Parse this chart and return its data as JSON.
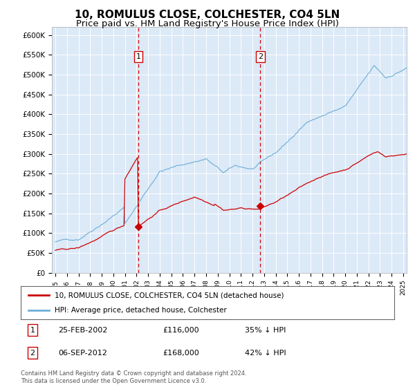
{
  "title": "10, ROMULUS CLOSE, COLCHESTER, CO4 5LN",
  "subtitle": "Price paid vs. HM Land Registry's House Price Index (HPI)",
  "title_fontsize": 11,
  "subtitle_fontsize": 9.5,
  "plot_bg_color": "#dce9f7",
  "hpi_color": "#6baed6",
  "price_color": "#cc0000",
  "vline_color": "#cc0000",
  "marker1_x": 2002.15,
  "marker2_x": 2012.68,
  "marker1_price": 116000,
  "marker2_price": 168000,
  "legend_line1": "10, ROMULUS CLOSE, COLCHESTER, CO4 5LN (detached house)",
  "legend_line2": "HPI: Average price, detached house, Colchester",
  "table_row1": [
    "1",
    "25-FEB-2002",
    "£116,000",
    "35% ↓ HPI"
  ],
  "table_row2": [
    "2",
    "06-SEP-2012",
    "£168,000",
    "42% ↓ HPI"
  ],
  "footer": "Contains HM Land Registry data © Crown copyright and database right 2024.\nThis data is licensed under the Open Government Licence v3.0.",
  "ylim": [
    0,
    620000
  ],
  "yticks": [
    0,
    50000,
    100000,
    150000,
    200000,
    250000,
    300000,
    350000,
    400000,
    450000,
    500000,
    550000,
    600000
  ],
  "xmin": 1995,
  "xmax": 2025
}
